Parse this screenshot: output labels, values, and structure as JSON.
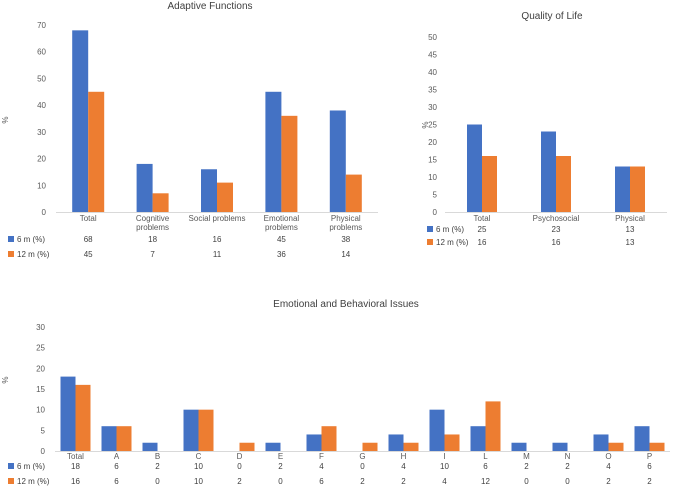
{
  "colors": {
    "series_6m": "#4472c4",
    "series_12m": "#ed7d31",
    "axis": "#d9d9d9"
  },
  "chart_data": [
    {
      "id": "adaptive",
      "type": "bar",
      "title": "Adaptive Functions",
      "ylabel": "%",
      "ylim": [
        0,
        70
      ],
      "yticks": [
        0,
        10,
        20,
        30,
        40,
        50,
        60,
        70
      ],
      "categories": [
        "Total",
        "Cognitive problems",
        "Social problems",
        "Emotional problems",
        "Physical problems"
      ],
      "category_lines": [
        [
          "Total"
        ],
        [
          "Cognitive",
          "problems"
        ],
        [
          "Social problems"
        ],
        [
          "Emotional",
          "problems"
        ],
        [
          "Physical",
          "problems"
        ]
      ],
      "series": [
        {
          "name": "6 m (%)",
          "values": [
            68,
            18,
            16,
            45,
            38
          ]
        },
        {
          "name": "12 m (%)",
          "values": [
            45,
            7,
            11,
            36,
            14
          ]
        }
      ]
    },
    {
      "id": "qol",
      "type": "bar",
      "title": "Quality of Life",
      "ylabel": "%",
      "ylim": [
        0,
        50
      ],
      "yticks": [
        0,
        5,
        10,
        15,
        20,
        25,
        30,
        35,
        40,
        45,
        50
      ],
      "categories": [
        "Total",
        "Psychosocial",
        "Physical"
      ],
      "category_lines": [
        [
          "Total"
        ],
        [
          "Psychosocial"
        ],
        [
          "Physical"
        ]
      ],
      "series": [
        {
          "name": "6 m (%)",
          "values": [
            25,
            23,
            13
          ]
        },
        {
          "name": "12 m (%)",
          "values": [
            16,
            16,
            13
          ]
        }
      ]
    },
    {
      "id": "ebi",
      "type": "bar",
      "title": "Emotional and Behavioral Issues",
      "ylabel": "%",
      "ylim": [
        0,
        30
      ],
      "yticks": [
        0,
        5,
        10,
        15,
        20,
        25,
        30
      ],
      "categories": [
        "Total",
        "A",
        "B",
        "C",
        "D",
        "E",
        "F",
        "G",
        "H",
        "I",
        "L",
        "M",
        "N",
        "O",
        "P"
      ],
      "category_lines": [
        [
          "Total"
        ],
        [
          "A"
        ],
        [
          "B"
        ],
        [
          "C"
        ],
        [
          "D"
        ],
        [
          "E"
        ],
        [
          "F"
        ],
        [
          "G"
        ],
        [
          "H"
        ],
        [
          "I"
        ],
        [
          "L"
        ],
        [
          "M"
        ],
        [
          "N"
        ],
        [
          "O"
        ],
        [
          "P"
        ]
      ],
      "series": [
        {
          "name": "6 m (%)",
          "values": [
            18,
            6,
            2,
            10,
            0,
            2,
            4,
            0,
            4,
            10,
            6,
            2,
            2,
            4,
            6
          ]
        },
        {
          "name": "12 m (%)",
          "values": [
            16,
            6,
            0,
            10,
            2,
            0,
            6,
            2,
            2,
            4,
            12,
            0,
            0,
            2,
            2
          ]
        }
      ]
    }
  ]
}
